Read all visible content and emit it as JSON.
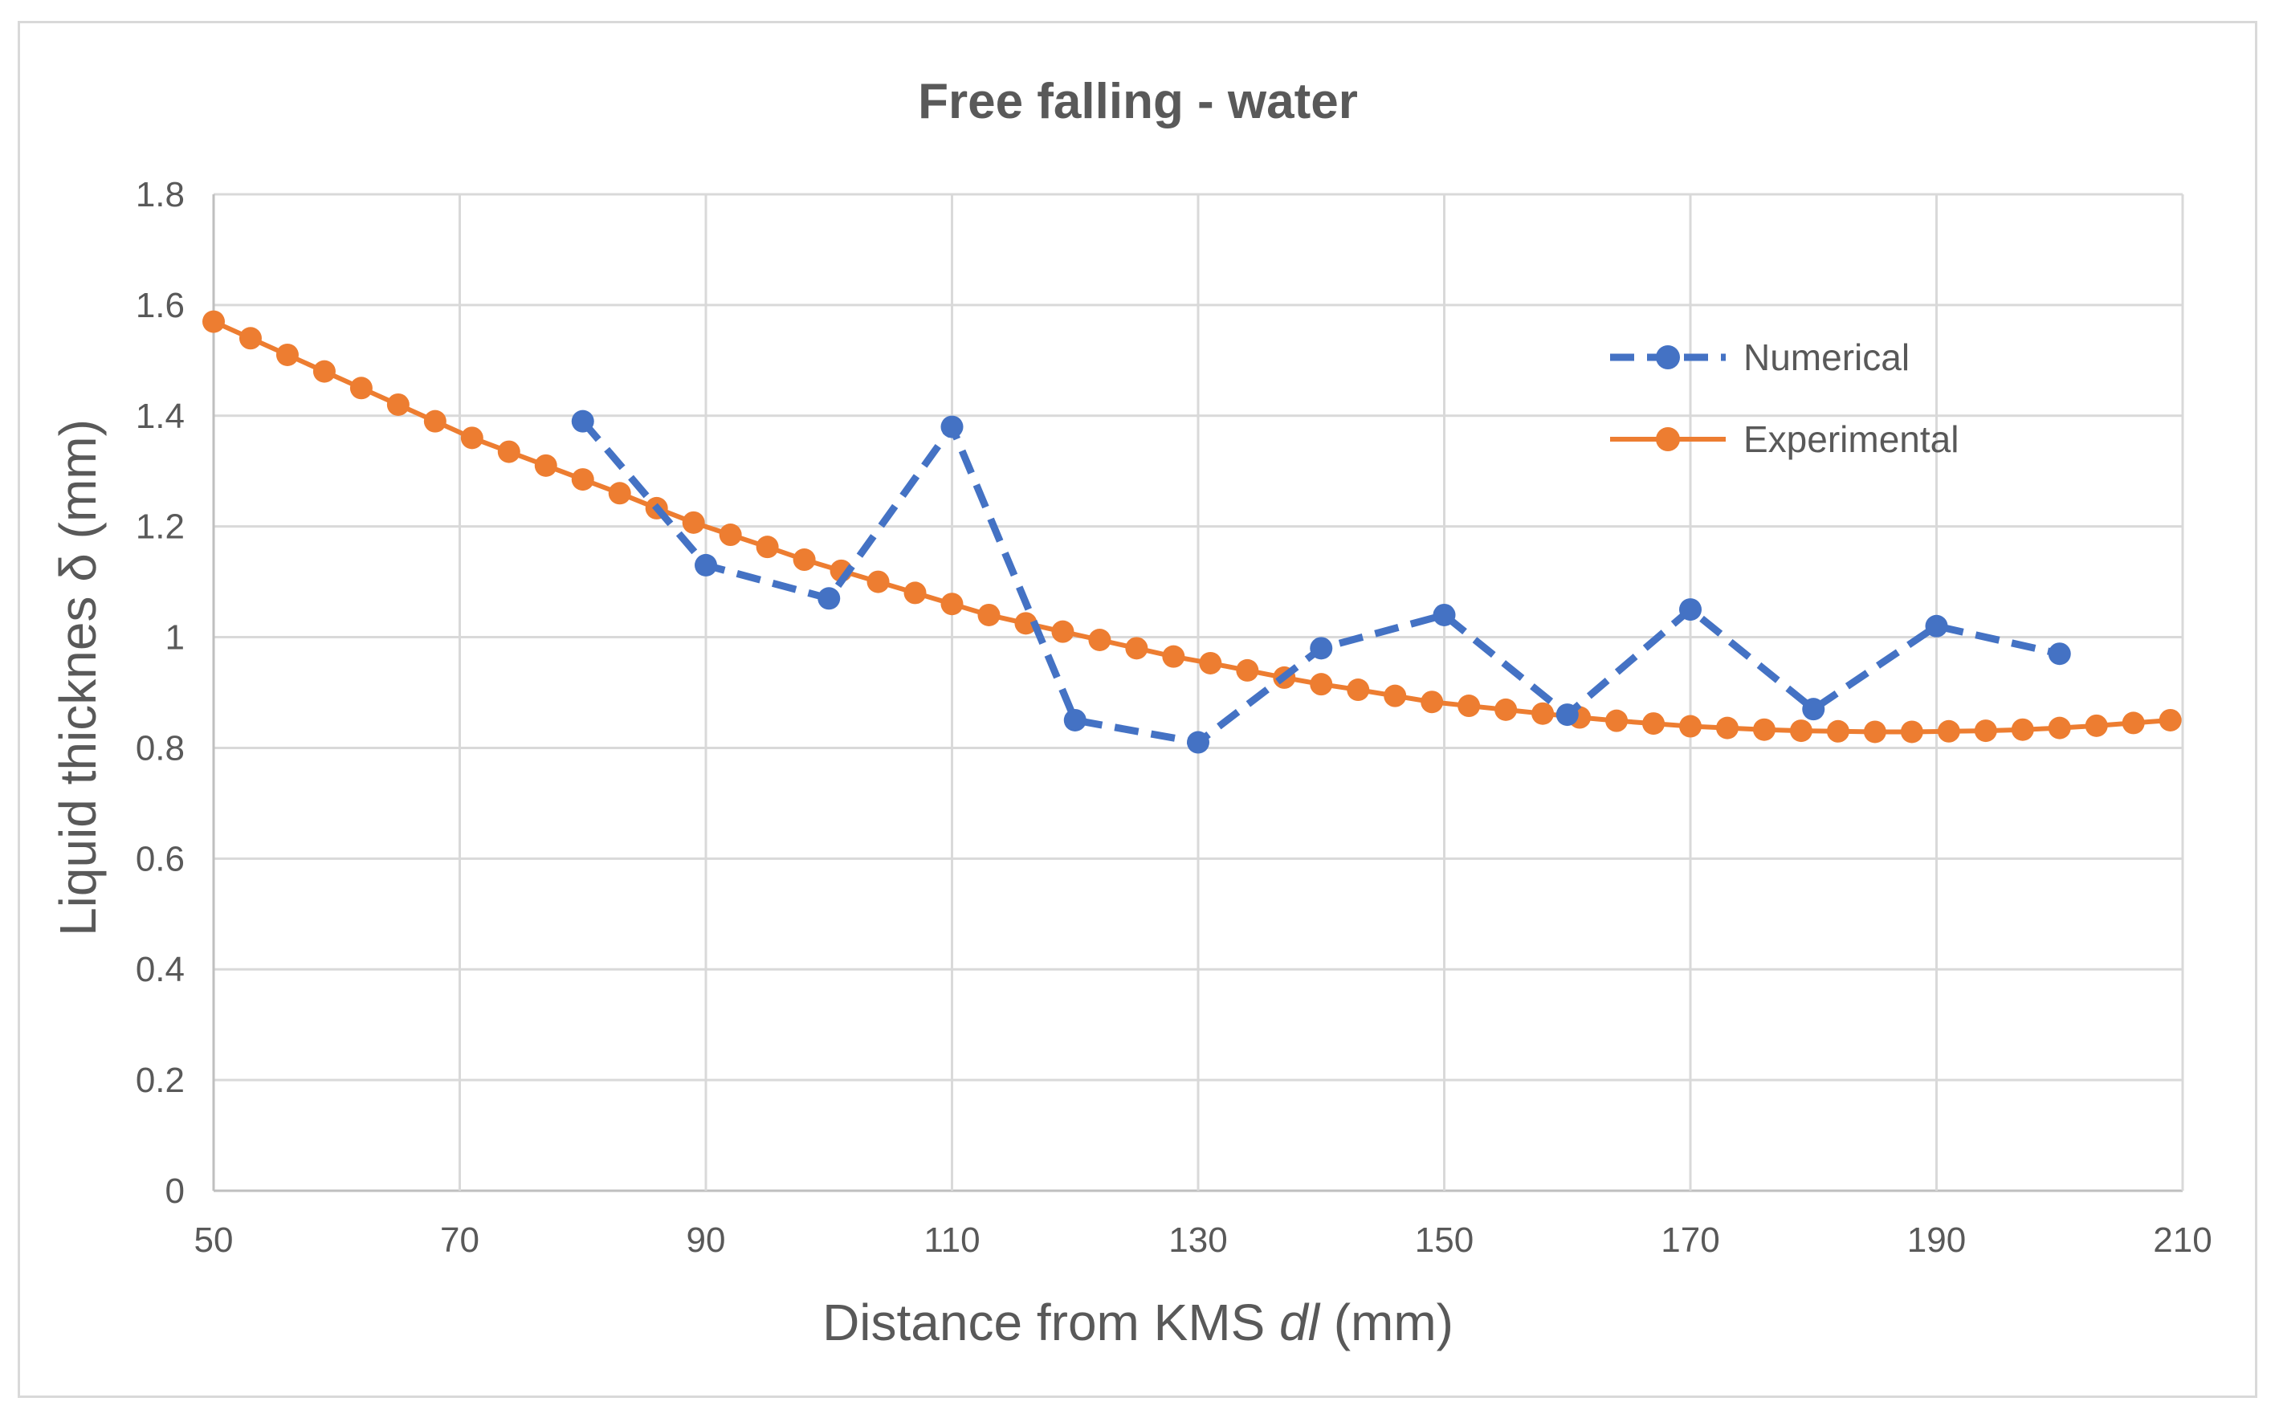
{
  "chart_data": {
    "type": "line",
    "title": "Free falling - water",
    "xlabel_main": "Distance from KMS ",
    "xlabel_italic": "dl",
    "xlabel_unit": " (mm)",
    "ylabel": "Liquid thicknes δ (mm)",
    "xlim": [
      50,
      210
    ],
    "ylim": [
      0,
      1.8
    ],
    "x_ticks": [
      50,
      70,
      90,
      110,
      130,
      150,
      170,
      190,
      210
    ],
    "y_ticks": [
      0,
      0.2,
      0.4,
      0.6,
      0.8,
      1,
      1.2,
      1.4,
      1.6,
      1.8
    ],
    "grid": true,
    "legend_position": "top-right",
    "series": [
      {
        "name": "Numerical",
        "color": "#4472c4",
        "style": "dashed",
        "x": [
          80,
          90,
          100,
          110,
          120,
          130,
          140,
          150,
          160,
          170,
          180,
          190,
          200
        ],
        "y": [
          1.39,
          1.13,
          1.07,
          1.38,
          0.85,
          0.81,
          0.98,
          1.04,
          0.86,
          1.05,
          0.87,
          1.02,
          0.97
        ]
      },
      {
        "name": "Experimental",
        "color": "#ed7d31",
        "style": "solid",
        "x": [
          50,
          53,
          56,
          59,
          62,
          65,
          68,
          71,
          74,
          77,
          80,
          83,
          86,
          89,
          92,
          95,
          98,
          101,
          104,
          107,
          110,
          113,
          116,
          119,
          122,
          125,
          128,
          131,
          134,
          137,
          140,
          143,
          146,
          149,
          152,
          155,
          158,
          161,
          164,
          167,
          170,
          173,
          176,
          179,
          182,
          185,
          188,
          191,
          194,
          197,
          200,
          203,
          206,
          209
        ],
        "y": [
          1.57,
          1.54,
          1.51,
          1.48,
          1.45,
          1.42,
          1.39,
          1.36,
          1.335,
          1.31,
          1.285,
          1.26,
          1.233,
          1.207,
          1.185,
          1.163,
          1.14,
          1.12,
          1.1,
          1.08,
          1.06,
          1.04,
          1.025,
          1.01,
          0.995,
          0.98,
          0.965,
          0.953,
          0.94,
          0.927,
          0.915,
          0.905,
          0.894,
          0.883,
          0.876,
          0.869,
          0.862,
          0.855,
          0.849,
          0.844,
          0.839,
          0.836,
          0.833,
          0.831,
          0.83,
          0.829,
          0.829,
          0.83,
          0.831,
          0.833,
          0.836,
          0.84,
          0.845,
          0.85
        ]
      }
    ]
  }
}
